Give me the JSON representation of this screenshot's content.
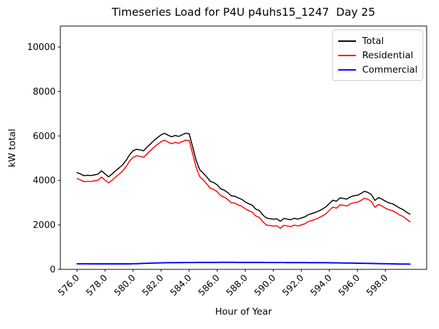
{
  "legend": {
    "position": "upper right",
    "items": [
      {
        "label": "Total",
        "color": "#000000"
      },
      {
        "label": "Residential",
        "color": "#ff0000"
      },
      {
        "label": "Commercial",
        "color": "#0000ff"
      }
    ]
  },
  "chart_data": {
    "type": "line",
    "title": "Timeseries Load for P4U p4uhs15_1247  Day 25",
    "xlabel": "Hour of Year",
    "ylabel": "kW total",
    "xlim": [
      574.8125,
      600.9375
    ],
    "ylim": [
      0,
      10940
    ],
    "x_tick_values": [
      576,
      578,
      580,
      582,
      584,
      586,
      588,
      590,
      592,
      594,
      596,
      598
    ],
    "x_ticklabels": [
      "576.0",
      "578.0",
      "580.0",
      "582.0",
      "584.0",
      "586.0",
      "588.0",
      "590.0",
      "592.0",
      "594.0",
      "596.0",
      "598.0"
    ],
    "y_tick_values": [
      0,
      2000,
      4000,
      6000,
      8000,
      10000
    ],
    "y_ticklabels": [
      "0",
      "2000",
      "4000",
      "6000",
      "8000",
      "10000"
    ],
    "grid": false,
    "x": [
      576.0,
      576.25,
      576.5,
      576.75,
      577.0,
      577.25,
      577.5,
      577.75,
      578.0,
      578.25,
      578.5,
      578.75,
      579.0,
      579.25,
      579.5,
      579.75,
      580.0,
      580.25,
      580.5,
      580.75,
      581.0,
      581.25,
      581.5,
      581.75,
      582.0,
      582.25,
      582.5,
      582.75,
      583.0,
      583.25,
      583.5,
      583.75,
      584.0,
      584.25,
      584.5,
      584.75,
      585.0,
      585.25,
      585.5,
      585.75,
      586.0,
      586.25,
      586.5,
      586.75,
      587.0,
      587.25,
      587.5,
      587.75,
      588.0,
      588.25,
      588.5,
      588.75,
      589.0,
      589.25,
      589.5,
      589.75,
      590.0,
      590.25,
      590.5,
      590.75,
      591.0,
      591.25,
      591.5,
      591.75,
      592.0,
      592.25,
      592.5,
      592.75,
      593.0,
      593.25,
      593.5,
      593.75,
      594.0,
      594.25,
      594.5,
      594.75,
      595.0,
      595.25,
      595.5,
      595.75,
      596.0,
      596.25,
      596.5,
      596.75,
      597.0,
      597.25,
      597.5,
      597.75,
      598.0,
      598.25,
      598.5,
      598.75,
      599.0,
      599.25,
      599.5,
      599.75
    ],
    "series": [
      {
        "name": "Total",
        "color": "#000000",
        "width": 1.5,
        "values": [
          4350,
          4290,
          4210,
          4230,
          4220,
          4250,
          4280,
          4430,
          4290,
          4160,
          4290,
          4430,
          4560,
          4700,
          4900,
          5150,
          5330,
          5400,
          5370,
          5330,
          5500,
          5650,
          5800,
          5930,
          6050,
          6120,
          6030,
          5960,
          6020,
          5980,
          6050,
          6120,
          6100,
          5500,
          4900,
          4480,
          4330,
          4160,
          3960,
          3900,
          3800,
          3620,
          3560,
          3450,
          3310,
          3290,
          3210,
          3150,
          3030,
          2950,
          2880,
          2710,
          2650,
          2450,
          2310,
          2280,
          2260,
          2270,
          2160,
          2290,
          2260,
          2230,
          2300,
          2260,
          2310,
          2360,
          2460,
          2510,
          2560,
          2630,
          2710,
          2810,
          2960,
          3110,
          3060,
          3210,
          3190,
          3160,
          3260,
          3310,
          3330,
          3410,
          3510,
          3460,
          3360,
          3100,
          3230,
          3160,
          3060,
          2990,
          2950,
          2860,
          2760,
          2690,
          2570,
          2480
        ]
      },
      {
        "name": "Residential",
        "color": "#ff0000",
        "width": 1.5,
        "values": [
          4080,
          4020,
          3940,
          3960,
          3950,
          3980,
          4010,
          4150,
          4010,
          3890,
          4010,
          4150,
          4280,
          4420,
          4620,
          4870,
          5040,
          5110,
          5080,
          5040,
          5200,
          5350,
          5500,
          5620,
          5740,
          5810,
          5720,
          5650,
          5710,
          5670,
          5740,
          5810,
          5790,
          5190,
          4590,
          4170,
          4020,
          3850,
          3650,
          3590,
          3490,
          3310,
          3250,
          3140,
          3000,
          2980,
          2900,
          2840,
          2720,
          2640,
          2570,
          2400,
          2340,
          2140,
          2000,
          1970,
          1950,
          1960,
          1850,
          1980,
          1950,
          1920,
          1990,
          1950,
          2000,
          2050,
          2150,
          2200,
          2250,
          2320,
          2400,
          2500,
          2650,
          2800,
          2750,
          2900,
          2880,
          2850,
          2950,
          3000,
          3020,
          3100,
          3200,
          3150,
          3050,
          2790,
          2920,
          2850,
          2750,
          2680,
          2640,
          2550,
          2450,
          2380,
          2260,
          2140
        ]
      },
      {
        "name": "Commercial",
        "color": "#0000ff",
        "width": 2,
        "values": [
          250,
          250,
          249,
          249,
          248,
          248,
          247,
          247,
          246,
          246,
          246,
          245,
          245,
          246,
          247,
          248,
          252,
          257,
          262,
          268,
          273,
          279,
          284,
          289,
          293,
          296,
          299,
          301,
          303,
          305,
          306,
          307,
          308,
          309,
          310,
          310,
          311,
          311,
          312,
          312,
          312,
          313,
          313,
          313,
          313,
          313,
          312,
          312,
          312,
          311,
          311,
          310,
          310,
          310,
          309,
          309,
          308,
          308,
          307,
          307,
          306,
          306,
          305,
          305,
          304,
          304,
          303,
          302,
          301,
          300,
          299,
          298,
          296,
          294,
          292,
          290,
          288,
          286,
          283,
          280,
          277,
          274,
          271,
          268,
          265,
          262,
          258,
          255,
          252,
          249,
          246,
          243,
          240,
          238,
          236,
          235
        ]
      }
    ]
  }
}
